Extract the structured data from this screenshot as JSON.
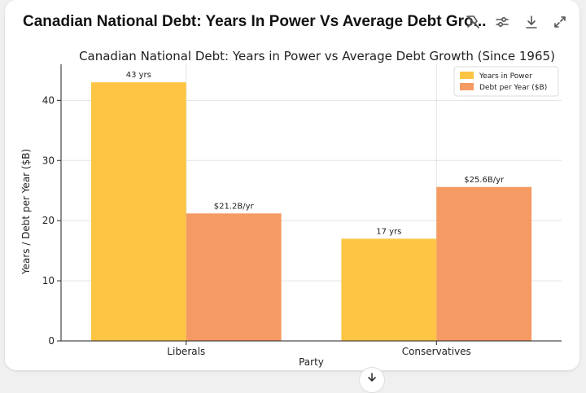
{
  "header": {
    "title": "Canadian National Debt: Years In Power Vs Average Debt Gro..."
  },
  "toolbar": {
    "icons": [
      "unpin-icon",
      "settings-sliders-icon",
      "download-icon",
      "expand-icon"
    ]
  },
  "colors": {
    "series1": "#fdc543",
    "series2": "#f59a62",
    "axis": "#222222",
    "grid": "#e2e2e2"
  },
  "chart_data": {
    "type": "bar",
    "title": "Canadian National Debt: Years in Power vs Average Debt Growth (Since 1965)",
    "xlabel": "Party",
    "ylabel": "Years / Debt per Year ($B)",
    "categories": [
      "Liberals",
      "Conservatives"
    ],
    "series": [
      {
        "name": "Years in Power",
        "values": [
          43,
          17
        ],
        "labels": [
          "43 yrs",
          "17 yrs"
        ]
      },
      {
        "name": "Debt per Year ($B)",
        "values": [
          21.2,
          25.6
        ],
        "labels": [
          "$21.2B/yr",
          "$25.6B/yr"
        ]
      }
    ],
    "ylim": [
      0,
      46
    ],
    "yticks": [
      0,
      10,
      20,
      30,
      40
    ],
    "grid": true,
    "legend": "top-right"
  }
}
